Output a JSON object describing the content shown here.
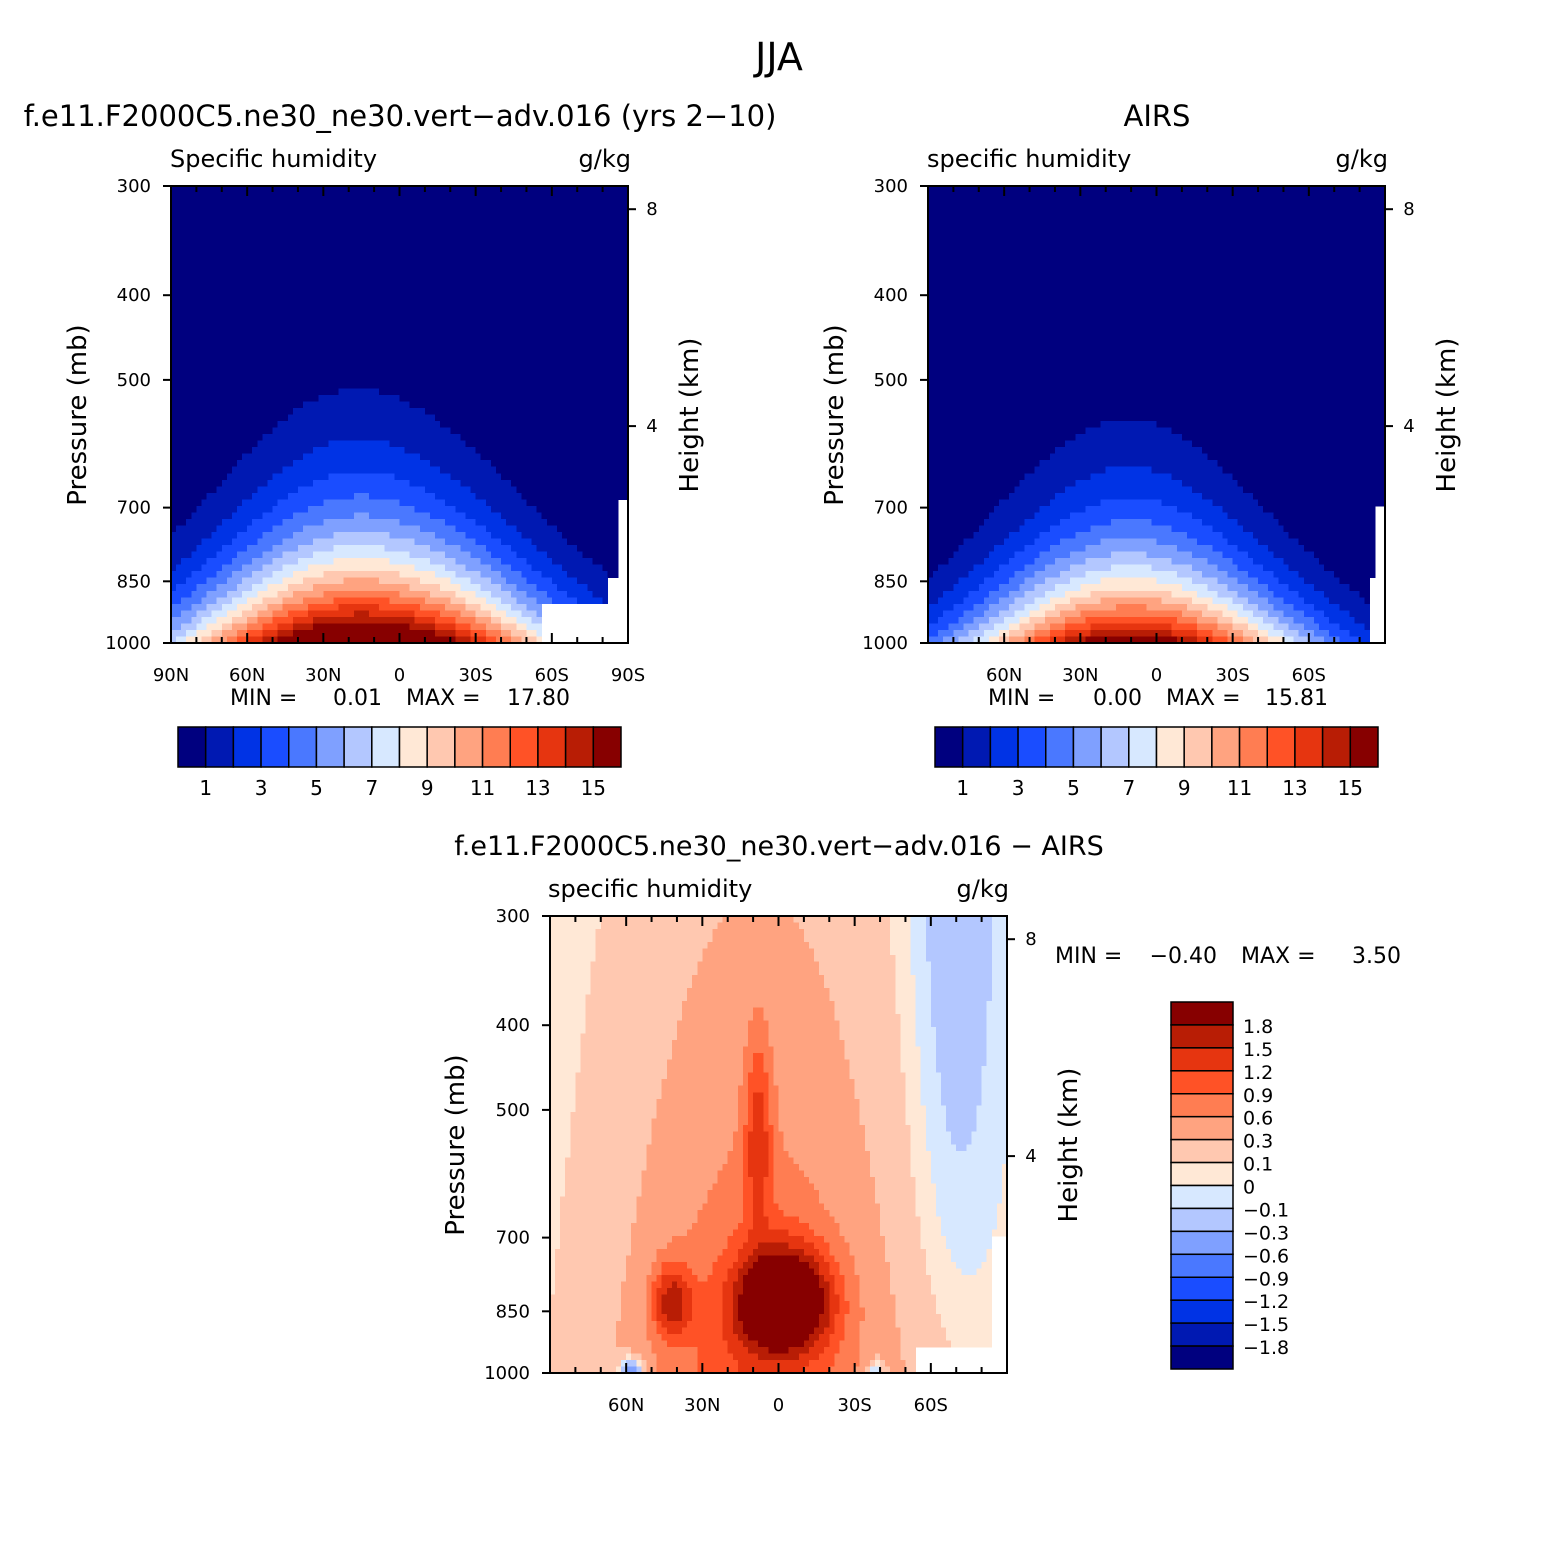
{
  "figure_title": "JJA",
  "chart_data": [
    {
      "type": "heatmap",
      "panel": "model",
      "title": "f.e11.F2000C5.ne30_ne30.vert−adv.016 (yrs 2−10)",
      "variable": "Specific humidity",
      "units": "g/kg",
      "ylabel": "Pressure (mb)",
      "y2label": "Height (km)",
      "x_tick_labels": [
        "90N",
        "60N",
        "30N",
        "0",
        "30S",
        "60S",
        "90S"
      ],
      "x_ticks": [
        90,
        60,
        30,
        0,
        -30,
        -60,
        -90
      ],
      "xlim": [
        90,
        -90
      ],
      "y_tick_labels": [
        "300",
        "400",
        "500",
        "700",
        "850",
        "1000"
      ],
      "y_ticks": [
        300,
        400,
        500,
        700,
        850,
        1000
      ],
      "ylim": [
        300,
        1000
      ],
      "y2_tick_labels": [
        "8",
        "4"
      ],
      "y2_ticks": [
        8,
        4
      ],
      "min_label": "MIN =",
      "min_value": "0.01",
      "max_label": "MAX =",
      "max_value": "17.80",
      "min": 0.01,
      "max": 17.8,
      "peak": {
        "lat": 12,
        "pressure": 1000,
        "value": 17.8
      },
      "levels": [
        1,
        2,
        3,
        4,
        5,
        6,
        7,
        8,
        9,
        10,
        11,
        12,
        13,
        14,
        15
      ],
      "colorbar_labels": [
        "1",
        "3",
        "5",
        "7",
        "9",
        "11",
        "13",
        "15"
      ]
    },
    {
      "type": "heatmap",
      "panel": "obs",
      "title": "AIRS",
      "variable": "specific humidity",
      "units": "g/kg",
      "ylabel": "Pressure (mb)",
      "y2label": "Height (km)",
      "x_tick_labels": [
        "60N",
        "30N",
        "0",
        "30S",
        "60S"
      ],
      "x_ticks": [
        60,
        30,
        0,
        -30,
        -60
      ],
      "xlim": [
        90,
        -90
      ],
      "y_tick_labels": [
        "300",
        "400",
        "500",
        "700",
        "850",
        "1000"
      ],
      "y_ticks": [
        300,
        400,
        500,
        700,
        850,
        1000
      ],
      "ylim": [
        300,
        1000
      ],
      "y2_tick_labels": [
        "8",
        "4"
      ],
      "y2_ticks": [
        8,
        4
      ],
      "min_label": "MIN =",
      "min_value": "0.00",
      "max_label": "MAX =",
      "max_value": "15.81",
      "min": 0.0,
      "max": 15.81,
      "peak": {
        "lat": 8,
        "pressure": 1000,
        "value": 15.81
      },
      "levels": [
        1,
        2,
        3,
        4,
        5,
        6,
        7,
        8,
        9,
        10,
        11,
        12,
        13,
        14,
        15
      ],
      "colorbar_labels": [
        "1",
        "3",
        "5",
        "7",
        "9",
        "11",
        "13",
        "15"
      ]
    },
    {
      "type": "heatmap",
      "panel": "difference",
      "title": "f.e11.F2000C5.ne30_ne30.vert−adv.016 − AIRS",
      "variable": "specific humidity",
      "units": "g/kg",
      "ylabel": "Pressure (mb)",
      "y2label": "Height (km)",
      "x_tick_labels": [
        "60N",
        "30N",
        "0",
        "30S",
        "60S"
      ],
      "x_ticks": [
        60,
        30,
        0,
        -30,
        -60
      ],
      "xlim": [
        90,
        -90
      ],
      "y_tick_labels": [
        "300",
        "400",
        "500",
        "700",
        "850",
        "1000"
      ],
      "y_ticks": [
        300,
        400,
        500,
        700,
        850,
        1000
      ],
      "ylim": [
        300,
        1000
      ],
      "y2_tick_labels": [
        "8",
        "4"
      ],
      "y2_ticks": [
        8,
        4
      ],
      "min_label": "MIN =",
      "min_value": "−0.40",
      "max_label": "MAX =",
      "max_value": "3.50",
      "min": -0.4,
      "max": 3.5,
      "levels": [
        -1.8,
        -1.5,
        -1.2,
        -0.9,
        -0.6,
        -0.3,
        -0.1,
        0,
        0.1,
        0.3,
        0.6,
        0.9,
        1.2,
        1.5,
        1.8
      ],
      "colorbar_labels": [
        "1.8",
        "1.5",
        "1.2",
        "0.9",
        "0.6",
        "0.3",
        "0.1",
        "0",
        "−0.1",
        "−0.3",
        "−0.6",
        "−0.9",
        "−1.2",
        "−1.5",
        "−1.8"
      ]
    }
  ],
  "colors": {
    "sequential": [
      "#00007f",
      "#0019b2",
      "#0033e5",
      "#1a4dff",
      "#4a78ff",
      "#7fa0ff",
      "#b3c7ff",
      "#d7e8ff",
      "#ffe8d6",
      "#ffc8b0",
      "#ffa380",
      "#ff7d52",
      "#ff5226",
      "#e63510",
      "#b81d05",
      "#870000"
    ],
    "diverging": [
      "#00007f",
      "#0019b2",
      "#0033e5",
      "#1a4dff",
      "#4a78ff",
      "#7fa0ff",
      "#b3c7ff",
      "#d7e8ff",
      "#ffe8d6",
      "#ffc8b0",
      "#ffa380",
      "#ff7d52",
      "#ff5226",
      "#e63510",
      "#b81d05",
      "#870000"
    ],
    "missing": "#ffffff"
  }
}
